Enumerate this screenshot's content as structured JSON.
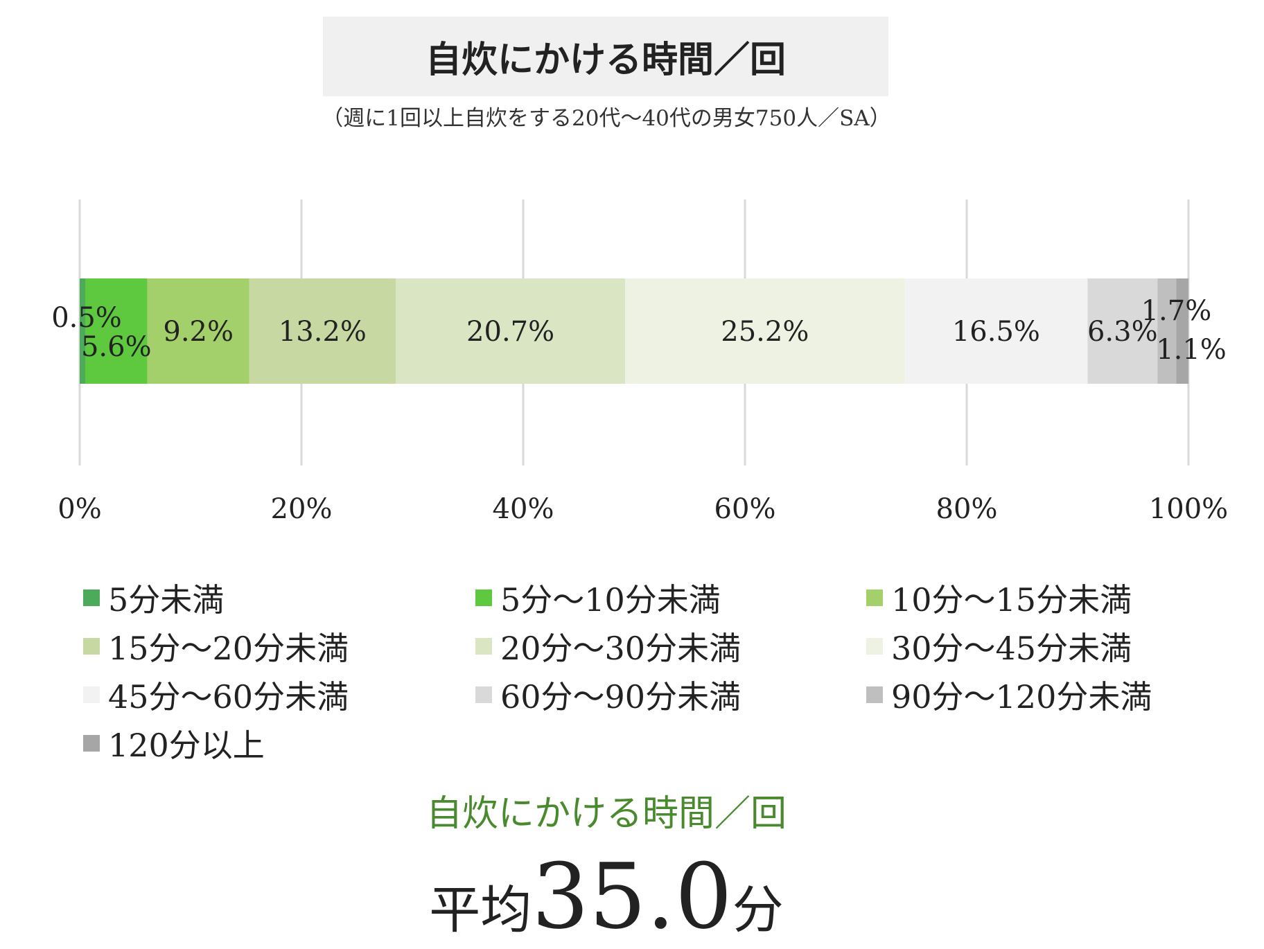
{
  "chart_data": {
    "type": "bar",
    "orientation": "horizontal-stacked-100",
    "title": "自炊にかける時間／回",
    "subtitle": "（週に1回以上自炊をする20代～40代の男女750人／SA）",
    "x_ticks": [
      "0%",
      "20%",
      "40%",
      "60%",
      "80%",
      "100%"
    ],
    "xlim": [
      0,
      100
    ],
    "grid": "vertical",
    "legend_position": "bottom",
    "series": [
      {
        "name": "5分未満",
        "value": 0.5,
        "label": "0.5%",
        "color": "#4caa5a"
      },
      {
        "name": "5分～10分未満",
        "value": 5.6,
        "label": "5.6%",
        "color": "#5ec83f"
      },
      {
        "name": "10分～15分未満",
        "value": 9.2,
        "label": "9.2%",
        "color": "#a3d06a"
      },
      {
        "name": "15分～20分未満",
        "value": 13.2,
        "label": "13.2%",
        "color": "#c7d8a3"
      },
      {
        "name": "20分～30分未満",
        "value": 20.7,
        "label": "20.7%",
        "color": "#d9e5c3"
      },
      {
        "name": "30分～45分未満",
        "value": 25.2,
        "label": "25.2%",
        "color": "#edf2e2"
      },
      {
        "name": "45分～60分未満",
        "value": 16.5,
        "label": "16.5%",
        "color": "#f2f2f2"
      },
      {
        "name": "60分～90分未満",
        "value": 6.3,
        "label": "6.3%",
        "color": "#d9d9d9"
      },
      {
        "name": "90分～120分未満",
        "value": 1.7,
        "label": "1.7%",
        "color": "#bfbfbf"
      },
      {
        "name": "120分以上",
        "value": 1.1,
        "label": "1.1%",
        "color": "#a6a6a6"
      }
    ]
  },
  "summary": {
    "label": "自炊にかける時間／回",
    "prefix": "平均",
    "value": "35.0",
    "unit": "分"
  }
}
